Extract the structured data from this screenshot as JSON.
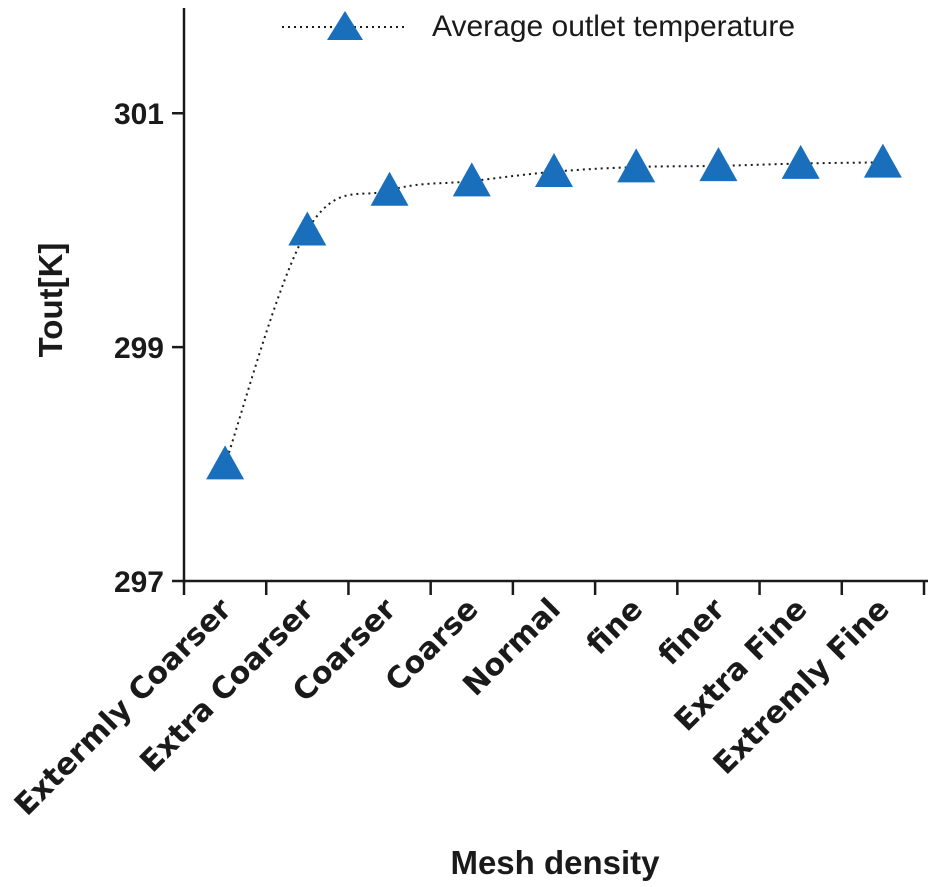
{
  "chart_data": {
    "type": "line",
    "title": "",
    "xlabel": "Mesh density",
    "ylabel": "Tout[K]",
    "categories": [
      "Extermly Coarser",
      "Extra Coarser",
      "Coarser",
      "Coarse",
      "Normal",
      "fine",
      "finer",
      "Extra Fine",
      "Extremly Fine"
    ],
    "series": [
      {
        "name": "Average outlet temperature",
        "values": [
          298.0,
          300.0,
          300.34,
          300.42,
          300.5,
          300.54,
          300.55,
          300.57,
          300.58
        ],
        "color": "#1a6fbd",
        "marker": "triangle",
        "line_style": "dotted"
      }
    ],
    "yticks": [
      "297",
      "299",
      "301"
    ],
    "ylim": [
      297,
      301.9
    ],
    "grid": false,
    "legend_position": "top"
  }
}
